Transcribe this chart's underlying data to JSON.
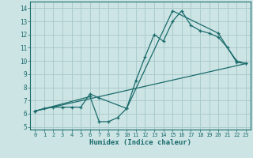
{
  "xlabel": "Humidex (Indice chaleur)",
  "ylabel": "",
  "bg_color": "#cde4e5",
  "line_color": "#1a6b6b",
  "grid_color": "#aacbcc",
  "xlim": [
    -0.5,
    23.5
  ],
  "ylim": [
    4.8,
    14.5
  ],
  "xticks": [
    0,
    1,
    2,
    3,
    4,
    5,
    6,
    7,
    8,
    9,
    10,
    11,
    12,
    13,
    14,
    15,
    16,
    17,
    18,
    19,
    20,
    21,
    22,
    23
  ],
  "yticks": [
    5,
    6,
    7,
    8,
    9,
    10,
    11,
    12,
    13,
    14
  ],
  "curve1_x": [
    0,
    1,
    2,
    3,
    4,
    5,
    6,
    7,
    10,
    11,
    12,
    13,
    14,
    15,
    16,
    17,
    18,
    19,
    20,
    21,
    22,
    23
  ],
  "curve1_y": [
    6.2,
    6.4,
    6.5,
    6.5,
    6.5,
    6.5,
    7.5,
    7.2,
    6.4,
    8.5,
    10.3,
    12.0,
    11.5,
    13.0,
    13.8,
    12.7,
    12.3,
    12.1,
    11.8,
    11.0,
    10.0,
    9.8
  ],
  "curve2_x": [
    0,
    6,
    7,
    8,
    9,
    10,
    15,
    20,
    22,
    23
  ],
  "curve2_y": [
    6.2,
    7.3,
    5.4,
    5.4,
    5.7,
    6.4,
    13.8,
    12.1,
    9.9,
    9.8
  ],
  "curve3_x": [
    0,
    23
  ],
  "curve3_y": [
    6.2,
    9.8
  ]
}
